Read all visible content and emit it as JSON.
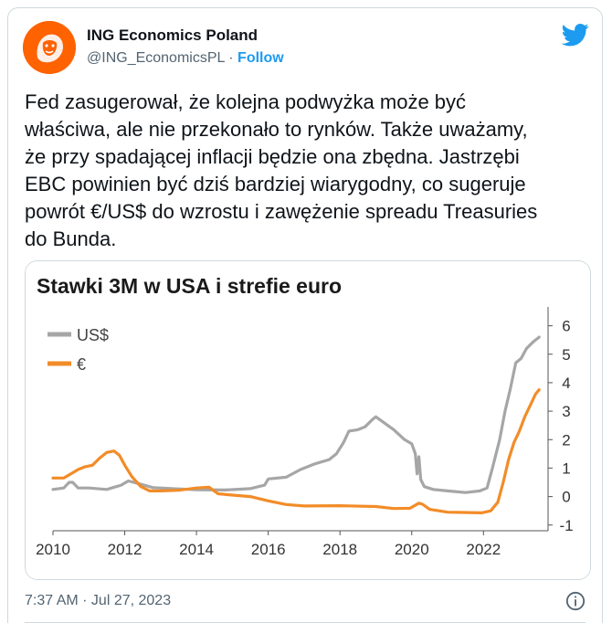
{
  "author": {
    "name": "ING Economics Poland",
    "handle": "@ING_EconomicsPL",
    "separator": "·",
    "follow_label": "Follow",
    "avatar_icon": "ing-lion-logo-icon",
    "brand_color": "#ff6200"
  },
  "tweet": {
    "text": "Fed zasugerował, że kolejna podwyżka może być\nwłaściwa, ale nie przekonało to rynków. Także uważamy,\nże przy spadającej inflacji będzie ona zbędna. Jastrzębi\nEBC powinien być dziś bardziej wiarygodny, co sugeruje\npowrót €/US$ do wzrostu i zawężenie spreadu Treasuries\ndo Bunda.",
    "timestamp": "7:37 AM · Jul 27, 2023"
  },
  "icons": {
    "twitter": "twitter-bird-icon",
    "info": "info-icon",
    "twitter_color": "#1d9bf0"
  },
  "chart_data": {
    "type": "line",
    "title": "Stawki 3M w USA i strefie euro",
    "x_ticks": [
      "2010",
      "2012",
      "2014",
      "2016",
      "2018",
      "2020",
      "2022"
    ],
    "y_ticks": [
      "6",
      "5",
      "4",
      "3",
      "2",
      "1",
      "0",
      "-1"
    ],
    "xlim": [
      2010,
      2023.8
    ],
    "ylim": [
      -1.2,
      6.5
    ],
    "legend_placement": "top-left",
    "series": [
      {
        "name": "US$",
        "color": "#a6a6a6",
        "points": [
          [
            2010.0,
            0.25
          ],
          [
            2010.3,
            0.3
          ],
          [
            2010.45,
            0.5
          ],
          [
            2010.55,
            0.5
          ],
          [
            2010.7,
            0.3
          ],
          [
            2011.0,
            0.3
          ],
          [
            2011.5,
            0.25
          ],
          [
            2011.9,
            0.4
          ],
          [
            2012.1,
            0.55
          ],
          [
            2012.4,
            0.45
          ],
          [
            2012.8,
            0.31
          ],
          [
            2013.5,
            0.27
          ],
          [
            2014.0,
            0.24
          ],
          [
            2014.8,
            0.23
          ],
          [
            2015.5,
            0.28
          ],
          [
            2015.9,
            0.4
          ],
          [
            2016.0,
            0.62
          ],
          [
            2016.5,
            0.68
          ],
          [
            2016.9,
            0.95
          ],
          [
            2017.3,
            1.15
          ],
          [
            2017.7,
            1.3
          ],
          [
            2017.9,
            1.5
          ],
          [
            2018.1,
            1.9
          ],
          [
            2018.25,
            2.3
          ],
          [
            2018.5,
            2.35
          ],
          [
            2018.7,
            2.45
          ],
          [
            2018.9,
            2.7
          ],
          [
            2019.0,
            2.8
          ],
          [
            2019.2,
            2.62
          ],
          [
            2019.5,
            2.35
          ],
          [
            2019.8,
            2.0
          ],
          [
            2020.0,
            1.85
          ],
          [
            2020.1,
            1.5
          ],
          [
            2020.15,
            0.8
          ],
          [
            2020.2,
            1.4
          ],
          [
            2020.25,
            0.6
          ],
          [
            2020.35,
            0.35
          ],
          [
            2020.6,
            0.25
          ],
          [
            2021.0,
            0.2
          ],
          [
            2021.5,
            0.14
          ],
          [
            2021.9,
            0.2
          ],
          [
            2022.1,
            0.3
          ],
          [
            2022.25,
            1.0
          ],
          [
            2022.45,
            2.0
          ],
          [
            2022.6,
            3.0
          ],
          [
            2022.75,
            3.8
          ],
          [
            2022.9,
            4.7
          ],
          [
            2023.05,
            4.85
          ],
          [
            2023.2,
            5.2
          ],
          [
            2023.4,
            5.45
          ],
          [
            2023.55,
            5.6
          ]
        ]
      },
      {
        "name": "€",
        "color": "#f28c28",
        "points": [
          [
            2010.0,
            0.65
          ],
          [
            2010.3,
            0.65
          ],
          [
            2010.5,
            0.8
          ],
          [
            2010.7,
            0.95
          ],
          [
            2010.9,
            1.05
          ],
          [
            2011.1,
            1.1
          ],
          [
            2011.3,
            1.35
          ],
          [
            2011.5,
            1.55
          ],
          [
            2011.7,
            1.6
          ],
          [
            2011.85,
            1.45
          ],
          [
            2012.0,
            1.1
          ],
          [
            2012.2,
            0.7
          ],
          [
            2012.45,
            0.35
          ],
          [
            2012.7,
            0.2
          ],
          [
            2013.0,
            0.2
          ],
          [
            2013.5,
            0.22
          ],
          [
            2014.0,
            0.3
          ],
          [
            2014.35,
            0.33
          ],
          [
            2014.6,
            0.1
          ],
          [
            2015.0,
            0.05
          ],
          [
            2015.5,
            0.0
          ],
          [
            2016.0,
            -0.15
          ],
          [
            2016.5,
            -0.28
          ],
          [
            2017.0,
            -0.33
          ],
          [
            2018.0,
            -0.32
          ],
          [
            2019.0,
            -0.35
          ],
          [
            2019.5,
            -0.42
          ],
          [
            2019.95,
            -0.41
          ],
          [
            2020.2,
            -0.23
          ],
          [
            2020.3,
            -0.27
          ],
          [
            2020.5,
            -0.45
          ],
          [
            2021.0,
            -0.55
          ],
          [
            2021.6,
            -0.56
          ],
          [
            2021.95,
            -0.57
          ],
          [
            2022.2,
            -0.5
          ],
          [
            2022.4,
            -0.2
          ],
          [
            2022.55,
            0.5
          ],
          [
            2022.7,
            1.3
          ],
          [
            2022.85,
            1.9
          ],
          [
            2023.0,
            2.3
          ],
          [
            2023.15,
            2.8
          ],
          [
            2023.3,
            3.2
          ],
          [
            2023.45,
            3.6
          ],
          [
            2023.55,
            3.75
          ]
        ]
      }
    ]
  }
}
